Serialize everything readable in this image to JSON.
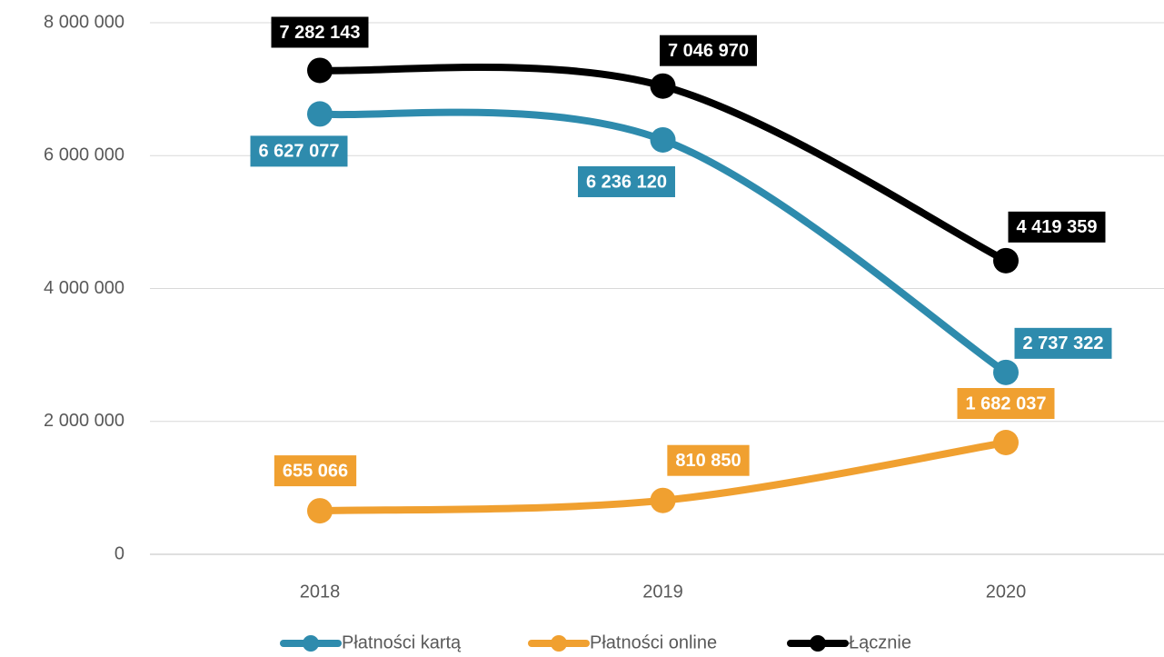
{
  "chart_data": {
    "type": "line",
    "categories": [
      "2018",
      "2019",
      "2020"
    ],
    "series": [
      {
        "name": "Płatności kartą",
        "color": "#2e8bad",
        "values": [
          6627077,
          6236120,
          2737322
        ],
        "value_labels": [
          "6 627 077",
          "6 236 120",
          "2 737 322"
        ]
      },
      {
        "name": "Płatności online",
        "color": "#f0a030",
        "values": [
          655066,
          810850,
          1682037
        ],
        "value_labels": [
          "655 066",
          "810 850",
          "1 682 037"
        ]
      },
      {
        "name": "Łącznie",
        "color": "#000000",
        "values": [
          7282143,
          7046970,
          4419359
        ],
        "value_labels": [
          "7 282 143",
          "7 046 970",
          "4 419 359"
        ]
      }
    ],
    "ylim": [
      0,
      8000000
    ],
    "yticks": [
      {
        "value": 0,
        "label": "0"
      },
      {
        "value": 2000000,
        "label": "2 000 000"
      },
      {
        "value": 4000000,
        "label": "4 000 000"
      },
      {
        "value": 6000000,
        "label": "6 000 000"
      },
      {
        "value": 8000000,
        "label": "8 000 000"
      }
    ],
    "grid": true,
    "legend": "bottom"
  }
}
